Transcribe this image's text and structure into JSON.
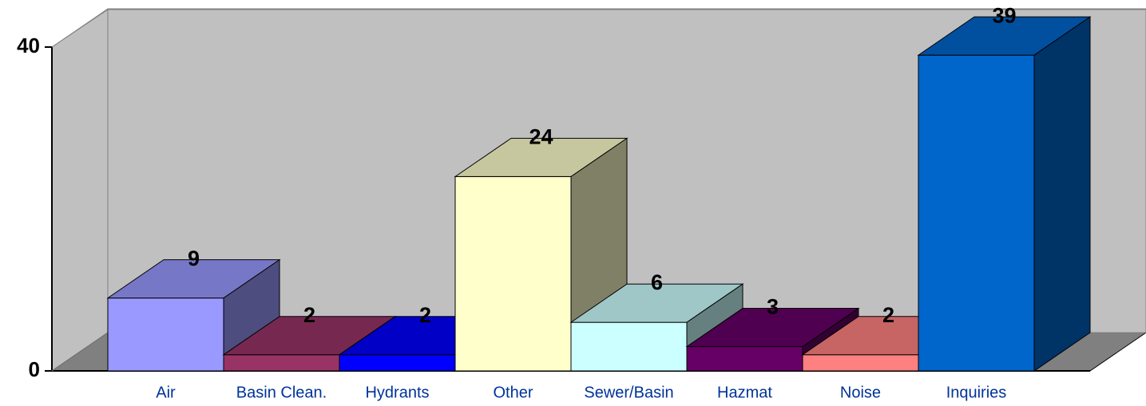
{
  "chart_data": {
    "type": "bar3d",
    "categories": [
      "Air",
      "Basin Clean.",
      "Hydrants",
      "Other",
      "Sewer/Basin",
      "Hazmat",
      "Noise",
      "Inquiries"
    ],
    "values": [
      9,
      2,
      2,
      24,
      6,
      3,
      2,
      39
    ],
    "colors": [
      "#9999ff",
      "#993366",
      "#0000ff",
      "#ffffcc",
      "#ccffff",
      "#660066",
      "#ff8080",
      "#0066cc"
    ],
    "ylim": [
      0,
      40
    ],
    "yticks": [
      0,
      40
    ]
  }
}
